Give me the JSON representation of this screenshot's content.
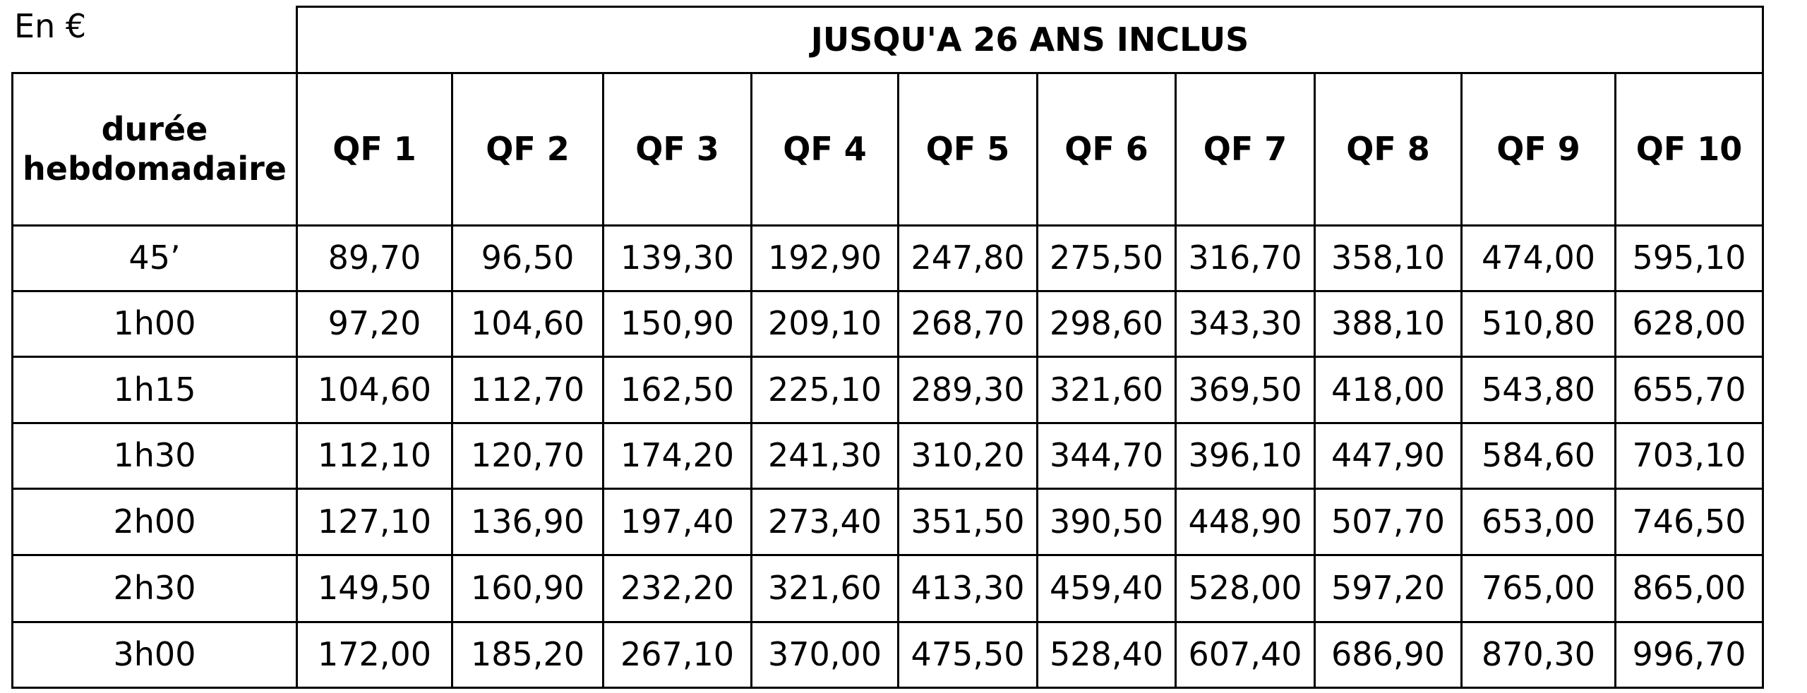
{
  "table": {
    "unit": "En €",
    "title": "JUSQU'A 26 ANS INCLUS",
    "row_header": "durée hebdomadaire",
    "columns": [
      "QF 1",
      "QF 2",
      "QF 3",
      "QF 4",
      "QF 5",
      "QF 6",
      "QF 7",
      "QF 8",
      "QF 9",
      "QF 10"
    ],
    "rows": [
      {
        "label": "45’",
        "values": [
          "89,70",
          "96,50",
          "139,30",
          "192,90",
          "247,80",
          "275,50",
          "316,70",
          "358,10",
          "474,00",
          "595,10"
        ]
      },
      {
        "label": "1h00",
        "values": [
          "97,20",
          "104,60",
          "150,90",
          "209,10",
          "268,70",
          "298,60",
          "343,30",
          "388,10",
          "510,80",
          "628,00"
        ]
      },
      {
        "label": "1h15",
        "values": [
          "104,60",
          "112,70",
          "162,50",
          "225,10",
          "289,30",
          "321,60",
          "369,50",
          "418,00",
          "543,80",
          "655,70"
        ]
      },
      {
        "label": "1h30",
        "values": [
          "112,10",
          "120,70",
          "174,20",
          "241,30",
          "310,20",
          "344,70",
          "396,10",
          "447,90",
          "584,60",
          "703,10"
        ]
      },
      {
        "label": "2h00",
        "values": [
          "127,10",
          "136,90",
          "197,40",
          "273,40",
          "351,50",
          "390,50",
          "448,90",
          "507,70",
          "653,00",
          "746,50"
        ]
      },
      {
        "label": "2h30",
        "values": [
          "149,50",
          "160,90",
          "232,20",
          "321,60",
          "413,30",
          "459,40",
          "528,00",
          "597,20",
          "765,00",
          "865,00"
        ]
      },
      {
        "label": "3h00",
        "values": [
          "172,00",
          "185,20",
          "267,10",
          "370,00",
          "475,50",
          "528,40",
          "607,40",
          "686,90",
          "870,30",
          "996,70"
        ]
      }
    ]
  }
}
